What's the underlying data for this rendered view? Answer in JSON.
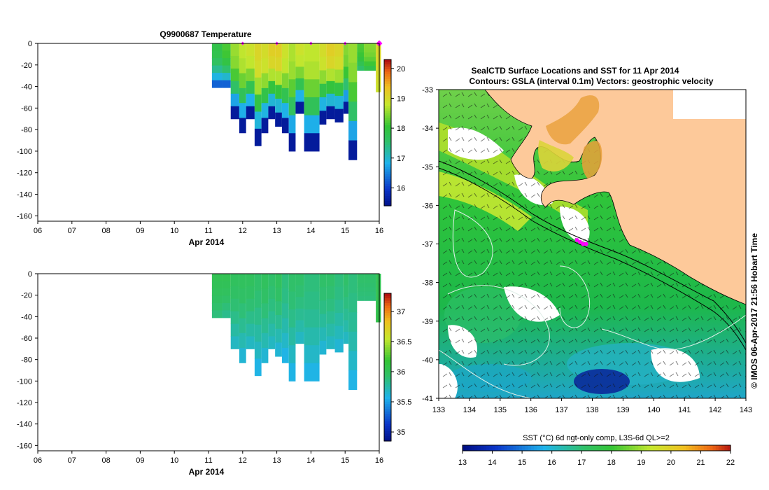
{
  "chart_data": [
    {
      "type": "heatmap",
      "title": "Q9900687  Temperature",
      "xlabel": "Apr 2014",
      "x_ticks": [
        "06",
        "07",
        "08",
        "09",
        "10",
        "11",
        "12",
        "13",
        "14",
        "15",
        "16"
      ],
      "x_range": [
        6,
        16
      ],
      "y_ticks": [
        0,
        -20,
        -40,
        -60,
        -80,
        -100,
        -120,
        -140,
        -160
      ],
      "y_range": [
        -165,
        0
      ],
      "colorbar": {
        "ticks": [
          16,
          17,
          18,
          19,
          20
        ],
        "range": [
          15.4,
          20.3
        ]
      },
      "surface_markers": [
        12,
        13,
        14,
        15,
        16
      ],
      "profiles": [
        {
          "x0": 11.1,
          "x1": 11.4,
          "depth": 41,
          "top": 17.9,
          "bottom": 16.3
        },
        {
          "x0": 11.4,
          "x1": 11.65,
          "depth": 41,
          "top": 18.2,
          "bottom": 16.3
        },
        {
          "x0": 11.65,
          "x1": 11.9,
          "depth": 70,
          "top": 18.6,
          "bottom": 15.6
        },
        {
          "x0": 11.9,
          "x1": 12.1,
          "depth": 83,
          "top": 18.8,
          "bottom": 15.6
        },
        {
          "x0": 12.1,
          "x1": 12.35,
          "depth": 70,
          "top": 18.9,
          "bottom": 15.6
        },
        {
          "x0": 12.35,
          "x1": 12.55,
          "depth": 95,
          "top": 19.1,
          "bottom": 15.6
        },
        {
          "x0": 12.55,
          "x1": 12.75,
          "depth": 83,
          "top": 19.0,
          "bottom": 15.6
        },
        {
          "x0": 12.75,
          "x1": 12.95,
          "depth": 70,
          "top": 19.2,
          "bottom": 15.6
        },
        {
          "x0": 12.95,
          "x1": 13.15,
          "depth": 77,
          "top": 19.2,
          "bottom": 15.6
        },
        {
          "x0": 13.15,
          "x1": 13.35,
          "depth": 83,
          "top": 18.9,
          "bottom": 15.6
        },
        {
          "x0": 13.35,
          "x1": 13.55,
          "depth": 100,
          "top": 18.7,
          "bottom": 15.6
        },
        {
          "x0": 13.55,
          "x1": 13.8,
          "depth": 65,
          "top": 18.9,
          "bottom": 15.6
        },
        {
          "x0": 13.8,
          "x1": 14.25,
          "depth": 100,
          "top": 18.8,
          "bottom": 15.6
        },
        {
          "x0": 14.25,
          "x1": 14.45,
          "depth": 75,
          "top": 19.0,
          "bottom": 15.6
        },
        {
          "x0": 14.45,
          "x1": 14.7,
          "depth": 70,
          "top": 19.2,
          "bottom": 15.6
        },
        {
          "x0": 14.7,
          "x1": 14.95,
          "depth": 73,
          "top": 19.1,
          "bottom": 15.6
        },
        {
          "x0": 14.95,
          "x1": 15.1,
          "depth": 65,
          "top": 18.5,
          "bottom": 15.6
        },
        {
          "x0": 15.1,
          "x1": 15.35,
          "depth": 108,
          "top": 18.6,
          "bottom": 15.6
        },
        {
          "x0": 15.35,
          "x1": 15.55,
          "depth": 25,
          "top": 18.2,
          "bottom": 17.6
        },
        {
          "x0": 15.55,
          "x1": 15.9,
          "depth": 25,
          "top": 18.5,
          "bottom": 17.9
        },
        {
          "x0": 15.9,
          "x1": 16.05,
          "depth": 45,
          "top": 19.1,
          "bottom": 18.9
        }
      ]
    },
    {
      "type": "heatmap",
      "title": "",
      "xlabel": "Apr 2014",
      "x_ticks": [
        "06",
        "07",
        "08",
        "09",
        "10",
        "11",
        "12",
        "13",
        "14",
        "15",
        "16"
      ],
      "x_range": [
        6,
        16
      ],
      "y_ticks": [
        0,
        -20,
        -40,
        -60,
        -80,
        -100,
        -120,
        -140,
        -160
      ],
      "y_range": [
        -165,
        0
      ],
      "colorbar": {
        "ticks": [
          35,
          35.5,
          36,
          36.5,
          37
        ],
        "range": [
          34.85,
          37.3
        ]
      },
      "profiles": [
        {
          "x0": 11.1,
          "x1": 11.4,
          "depth": 41,
          "top": 36.05,
          "bottom": 35.9
        },
        {
          "x0": 11.4,
          "x1": 11.65,
          "depth": 41,
          "top": 36.05,
          "bottom": 35.85
        },
        {
          "x0": 11.65,
          "x1": 11.9,
          "depth": 70,
          "top": 36.0,
          "bottom": 35.7
        },
        {
          "x0": 11.9,
          "x1": 12.1,
          "depth": 83,
          "top": 36.0,
          "bottom": 35.65
        },
        {
          "x0": 12.1,
          "x1": 12.35,
          "depth": 70,
          "top": 36.0,
          "bottom": 35.7
        },
        {
          "x0": 12.35,
          "x1": 12.55,
          "depth": 95,
          "top": 35.95,
          "bottom": 35.6
        },
        {
          "x0": 12.55,
          "x1": 12.75,
          "depth": 83,
          "top": 36.0,
          "bottom": 35.65
        },
        {
          "x0": 12.75,
          "x1": 12.95,
          "depth": 70,
          "top": 35.95,
          "bottom": 35.7
        },
        {
          "x0": 12.95,
          "x1": 13.15,
          "depth": 77,
          "top": 36.0,
          "bottom": 35.65
        },
        {
          "x0": 13.15,
          "x1": 13.35,
          "depth": 83,
          "top": 35.9,
          "bottom": 35.6
        },
        {
          "x0": 13.35,
          "x1": 13.55,
          "depth": 100,
          "top": 35.95,
          "bottom": 35.6
        },
        {
          "x0": 13.55,
          "x1": 13.8,
          "depth": 65,
          "top": 35.95,
          "bottom": 35.7
        },
        {
          "x0": 13.8,
          "x1": 14.25,
          "depth": 100,
          "top": 35.9,
          "bottom": 35.6
        },
        {
          "x0": 14.25,
          "x1": 14.45,
          "depth": 75,
          "top": 35.95,
          "bottom": 35.65
        },
        {
          "x0": 14.45,
          "x1": 14.7,
          "depth": 70,
          "top": 35.95,
          "bottom": 35.7
        },
        {
          "x0": 14.7,
          "x1": 14.95,
          "depth": 73,
          "top": 35.9,
          "bottom": 35.65
        },
        {
          "x0": 14.95,
          "x1": 15.1,
          "depth": 65,
          "top": 35.95,
          "bottom": 35.7
        },
        {
          "x0": 15.1,
          "x1": 15.35,
          "depth": 108,
          "top": 35.9,
          "bottom": 35.6
        },
        {
          "x0": 15.35,
          "x1": 15.55,
          "depth": 25,
          "top": 35.95,
          "bottom": 35.9
        },
        {
          "x0": 15.55,
          "x1": 15.9,
          "depth": 25,
          "top": 35.95,
          "bottom": 35.9
        },
        {
          "x0": 15.9,
          "x1": 16.05,
          "depth": 45,
          "top": 36.05,
          "bottom": 36.1
        }
      ]
    },
    {
      "type": "heatmap",
      "title": "SealCTD Surface Locations and SST for 11 Apr 2014",
      "subtitle": "Contours: GSLA (interval 0.1m) Vectors: geostrophic velocity",
      "x_ticks": [
        "133",
        "134",
        "135",
        "136",
        "137",
        "138",
        "139",
        "140",
        "141",
        "142",
        "143"
      ],
      "x_range": [
        133,
        143
      ],
      "y_ticks": [
        "-33",
        "-34",
        "-35",
        "-36",
        "-37",
        "-38",
        "-39",
        "-40",
        "-41"
      ],
      "y_range": [
        -41,
        -33
      ],
      "colorbar_label": "SST (°C) 6d ngt-only comp, L3S-6d QL>=2",
      "colorbar_ticks": [
        "13",
        "14",
        "15",
        "16",
        "17",
        "18",
        "19",
        "20",
        "21",
        "22"
      ],
      "colorbar_range": [
        13,
        22
      ],
      "seal_track": [
        [
          137.5,
          -36.9
        ],
        [
          137.6,
          -36.95
        ],
        [
          137.7,
          -37.0
        ],
        [
          137.8,
          -37.0
        ]
      ],
      "credit": "© IMOS 06-Apr-2017 21:56 Hobart Time"
    }
  ],
  "colors": {
    "land": "#fdc99a",
    "marker": "#ff00ff"
  }
}
